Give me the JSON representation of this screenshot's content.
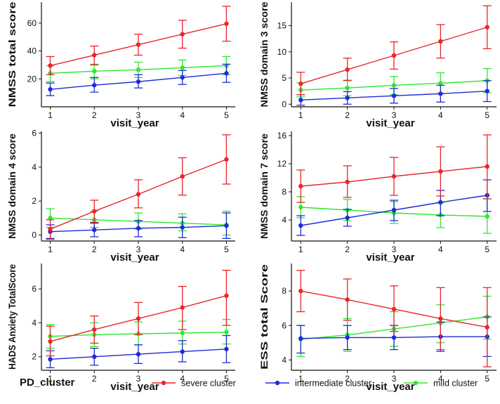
{
  "colors": {
    "severe": "#e8262b",
    "intermediate": "#1f2bd6",
    "mild": "#2ee82e",
    "axis": "#111111"
  },
  "legend": {
    "title": "PD_cluster",
    "items": [
      {
        "key": "severe",
        "label": "severe cluster"
      },
      {
        "key": "intermediate",
        "label": "intermediate cluster"
      },
      {
        "key": "mild",
        "label": "mild cluster"
      }
    ]
  },
  "chart_data": [
    {
      "type": "line",
      "ylabel": "NMSS total score",
      "xlabel": "visit_year",
      "x": [
        1,
        2,
        3,
        4,
        5
      ],
      "ylim": [
        0,
        75
      ],
      "yticks": [
        20,
        40,
        60
      ],
      "series": [
        {
          "key": "severe",
          "name": "severe cluster",
          "values": [
            29.5,
            37,
            44.5,
            52,
            59.5
          ],
          "lower": [
            23,
            30,
            37,
            42,
            47
          ],
          "upper": [
            36,
            43.5,
            52,
            62,
            72
          ]
        },
        {
          "key": "intermediate",
          "name": "intermediate cluster",
          "values": [
            12.5,
            15.5,
            18,
            21,
            24
          ],
          "lower": [
            8,
            10.5,
            13.5,
            16,
            17.5
          ],
          "upper": [
            17,
            21,
            23,
            26,
            30.5
          ]
        },
        {
          "key": "mild",
          "name": "mild cluster",
          "values": [
            24,
            25.5,
            26.5,
            28,
            29.5
          ],
          "lower": [
            18,
            20,
            21,
            22.5,
            23
          ],
          "upper": [
            29.5,
            30.5,
            32,
            33.5,
            36
          ]
        }
      ]
    },
    {
      "type": "line",
      "ylabel": "NMSS domain 3 score",
      "xlabel": "visit_year",
      "x": [
        1,
        2,
        3,
        4,
        5
      ],
      "ylim": [
        -0.5,
        19.5
      ],
      "yticks": [
        0,
        5,
        10,
        15
      ],
      "series": [
        {
          "key": "severe",
          "name": "severe cluster",
          "values": [
            3.9,
            6.6,
            9.3,
            12,
            14.7
          ],
          "lower": [
            1.8,
            4.5,
            6.7,
            8.8,
            10.6
          ],
          "upper": [
            6.1,
            8.8,
            11.9,
            15.2,
            18.8
          ]
        },
        {
          "key": "intermediate",
          "name": "intermediate cluster",
          "values": [
            0.8,
            1.2,
            1.6,
            2,
            2.5
          ],
          "lower": [
            -0.2,
            0,
            0.2,
            0.4,
            0.5
          ],
          "upper": [
            1.8,
            2.4,
            3,
            3.6,
            4.5
          ]
        },
        {
          "key": "mild",
          "name": "mild cluster",
          "values": [
            2.7,
            3.1,
            3.6,
            4,
            4.5
          ],
          "lower": [
            1.4,
            1.6,
            1.8,
            2,
            2.2
          ],
          "upper": [
            4.1,
            4.6,
            5.3,
            6,
            6.8
          ]
        }
      ]
    },
    {
      "type": "line",
      "ylabel": "NMSS domain 4 score",
      "xlabel": "visit_year",
      "x": [
        1,
        2,
        3,
        4,
        5
      ],
      "ylim": [
        -0.35,
        6.1
      ],
      "yticks": [
        0,
        2,
        4,
        6
      ],
      "series": [
        {
          "key": "severe",
          "name": "severe cluster",
          "values": [
            0.35,
            1.4,
            2.4,
            3.45,
            4.45
          ],
          "lower": [
            -0.25,
            0.75,
            1.6,
            2.35,
            3
          ],
          "upper": [
            0.9,
            2.05,
            3.25,
            4.55,
            5.9
          ]
        },
        {
          "key": "intermediate",
          "name": "intermediate cluster",
          "values": [
            0.2,
            0.3,
            0.4,
            0.45,
            0.55
          ],
          "lower": [
            -0.2,
            -0.1,
            -0.1,
            -0.15,
            -0.2
          ],
          "upper": [
            0.6,
            0.7,
            0.85,
            1.05,
            1.3
          ]
        },
        {
          "key": "mild",
          "name": "mild cluster",
          "values": [
            1.0,
            0.9,
            0.8,
            0.7,
            0.6
          ],
          "lower": [
            0.45,
            0.45,
            0.35,
            0.25,
            0
          ],
          "upper": [
            1.55,
            1.4,
            1.3,
            1.25,
            1.4
          ]
        }
      ]
    },
    {
      "type": "line",
      "ylabel": "NMSS domain 7 score",
      "xlabel": "visit_year",
      "x": [
        1,
        2,
        3,
        4,
        5
      ],
      "ylim": [
        1.0,
        16.6
      ],
      "yticks": [
        4,
        8,
        12,
        16
      ],
      "series": [
        {
          "key": "severe",
          "name": "severe cluster",
          "values": [
            8.8,
            9.4,
            10.2,
            10.9,
            11.6
          ],
          "lower": [
            6.5,
            7.2,
            7.5,
            7.4,
            7.0
          ],
          "upper": [
            11.1,
            11.7,
            12.9,
            14.4,
            16.1
          ]
        },
        {
          "key": "intermediate",
          "name": "intermediate cluster",
          "values": [
            3.2,
            4.3,
            5.4,
            6.5,
            7.5
          ],
          "lower": [
            1.8,
            3.1,
            3.9,
            4.6,
            5.2
          ],
          "upper": [
            4.6,
            5.5,
            6.8,
            8.2,
            9.7
          ]
        },
        {
          "key": "mild",
          "name": "mild cluster",
          "values": [
            5.8,
            5.4,
            5.0,
            4.7,
            4.5
          ],
          "lower": [
            4.3,
            3.9,
            3.5,
            2.9,
            2.1
          ],
          "upper": [
            7.3,
            6.9,
            6.6,
            6.5,
            7.0
          ]
        }
      ]
    },
    {
      "type": "line",
      "ylabel": "HADS Anxiety TotalScore",
      "xlabel": "visit_year",
      "x": [
        1,
        2,
        3,
        4,
        5
      ],
      "ylim": [
        1.2,
        7.5
      ],
      "yticks": [
        2,
        4,
        6
      ],
      "series": [
        {
          "key": "severe",
          "name": "severe cluster",
          "values": [
            2.9,
            3.6,
            4.25,
            4.9,
            5.6
          ],
          "lower": [
            2.05,
            2.8,
            3.3,
            3.6,
            3.85
          ],
          "upper": [
            3.8,
            4.4,
            5.2,
            6.15,
            7.1
          ]
        },
        {
          "key": "intermediate",
          "name": "intermediate cluster",
          "values": [
            1.85,
            2.0,
            2.15,
            2.3,
            2.45
          ],
          "lower": [
            1.35,
            1.5,
            1.6,
            1.7,
            1.65
          ],
          "upper": [
            2.35,
            2.5,
            2.7,
            2.95,
            3.25
          ]
        },
        {
          "key": "mild",
          "name": "mild cluster",
          "values": [
            3.2,
            3.3,
            3.35,
            3.4,
            3.45
          ],
          "lower": [
            2.5,
            2.6,
            2.7,
            2.75,
            2.75
          ],
          "upper": [
            3.9,
            4.0,
            4.05,
            4.1,
            4.2
          ]
        }
      ]
    },
    {
      "type": "line",
      "ylabel": "ESS total Score",
      "xlabel": "visit_year",
      "x": [
        1,
        2,
        3,
        4,
        5
      ],
      "ylim": [
        3.4,
        9.6
      ],
      "yticks": [
        4,
        6,
        8
      ],
      "series": [
        {
          "key": "severe",
          "name": "severe cluster",
          "values": [
            8.0,
            7.5,
            6.95,
            6.4,
            5.9
          ],
          "lower": [
            6.8,
            6.3,
            5.65,
            4.6,
            3.6
          ],
          "upper": [
            9.2,
            8.7,
            8.3,
            8.2,
            8.2
          ]
        },
        {
          "key": "intermediate",
          "name": "intermediate cluster",
          "values": [
            5.25,
            5.3,
            5.3,
            5.35,
            5.35
          ],
          "lower": [
            4.4,
            4.6,
            4.6,
            4.5,
            4.2
          ],
          "upper": [
            6.0,
            6.0,
            6.0,
            6.2,
            6.5
          ]
        },
        {
          "key": "mild",
          "name": "mild cluster",
          "values": [
            5.2,
            5.45,
            5.8,
            6.15,
            6.5
          ],
          "lower": [
            4.2,
            4.5,
            4.8,
            5.0,
            5.2
          ],
          "upper": [
            6.0,
            6.4,
            6.8,
            7.2,
            7.7
          ]
        }
      ]
    }
  ]
}
